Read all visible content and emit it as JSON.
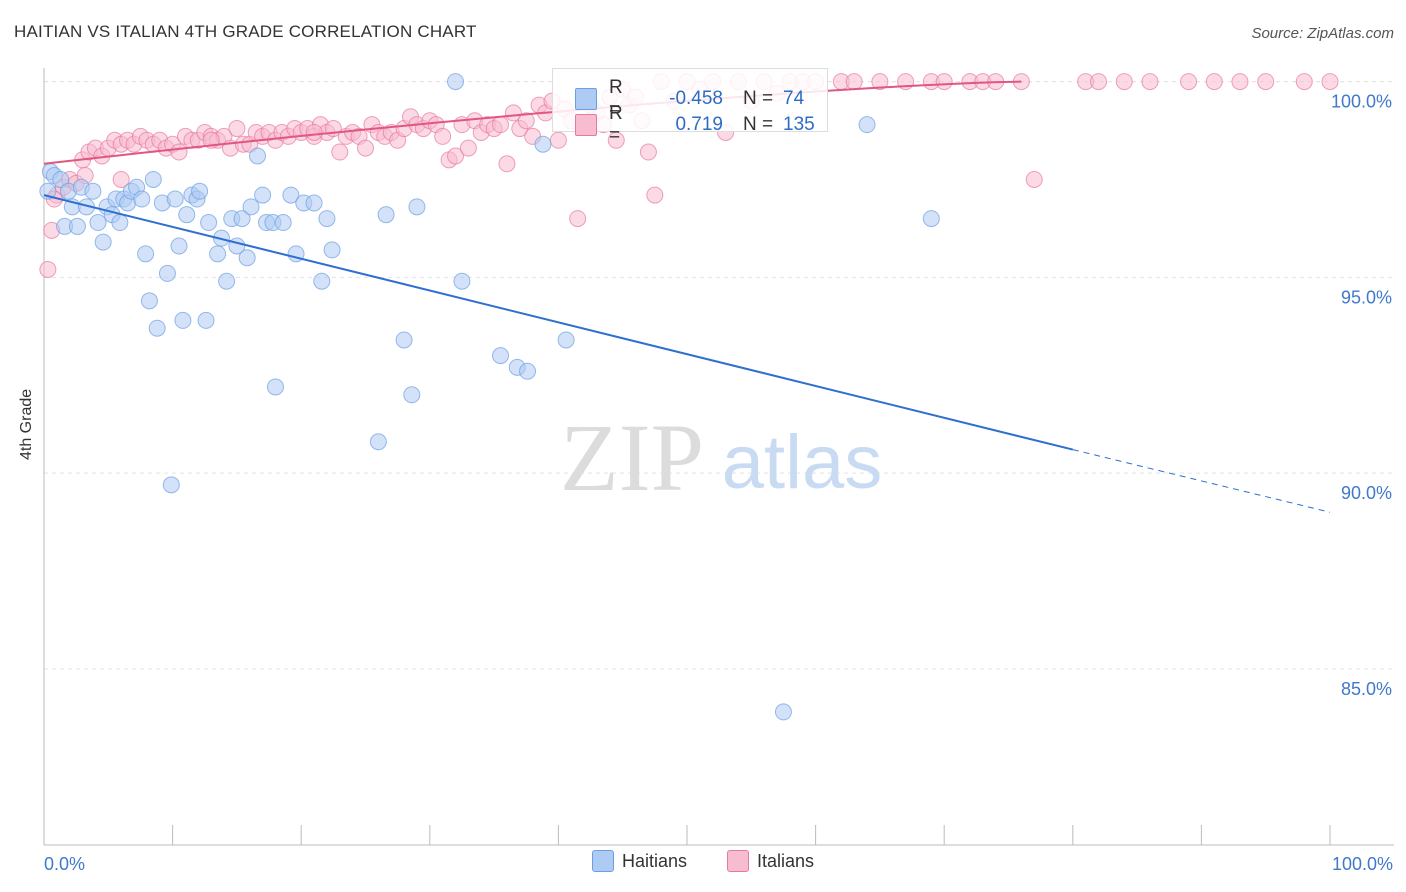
{
  "title": "HAITIAN VS ITALIAN 4TH GRADE CORRELATION CHART",
  "source": "Source: ZipAtlas.com",
  "watermark": {
    "zip": "ZIP",
    "atlas": "atlas"
  },
  "stats": [
    {
      "label": "R =",
      "r": "-0.458",
      "n_label": "N =",
      "n": "74",
      "color": "#a9c8f2"
    },
    {
      "label": "R =",
      "r": "0.719",
      "n_label": "N =",
      "n": "135",
      "color": "#f7b3c9"
    }
  ],
  "chart_data": {
    "type": "scatter",
    "title": "HAITIAN VS ITALIAN 4TH GRADE CORRELATION CHART",
    "xlabel": "",
    "ylabel": "4th Grade",
    "xlim": [
      0,
      100
    ],
    "ylim": [
      80.5,
      100.5
    ],
    "x_tick_labels": [
      "0.0%",
      "100.0%"
    ],
    "y_ticks": [
      85,
      90,
      95,
      100
    ],
    "y_tick_labels": [
      "85.0%",
      "90.0%",
      "95.0%",
      "100.0%"
    ],
    "grid": true,
    "series": [
      {
        "name": "Haitians",
        "color": "#6b9fe3",
        "fill": "#aecbf3",
        "trend": {
          "x0": 0,
          "y0": 97.1,
          "x1": 80,
          "y1": 90.6,
          "dashed_to_x": 100,
          "dashed_to_y": 89.0
        },
        "points": [
          [
            0.5,
            97.7
          ],
          [
            0.8,
            97.6
          ],
          [
            1.3,
            97.5
          ],
          [
            1.6,
            96.3
          ],
          [
            1.9,
            97.2
          ],
          [
            2.2,
            96.8
          ],
          [
            2.6,
            96.3
          ],
          [
            2.9,
            97.3
          ],
          [
            3.3,
            96.8
          ],
          [
            3.8,
            97.2
          ],
          [
            4.2,
            96.4
          ],
          [
            4.6,
            95.9
          ],
          [
            4.9,
            96.8
          ],
          [
            5.3,
            96.6
          ],
          [
            5.6,
            97.0
          ],
          [
            5.9,
            96.4
          ],
          [
            6.2,
            97.0
          ],
          [
            6.5,
            96.9
          ],
          [
            6.8,
            97.2
          ],
          [
            7.2,
            97.3
          ],
          [
            7.6,
            97.0
          ],
          [
            7.9,
            95.6
          ],
          [
            8.2,
            94.4
          ],
          [
            8.5,
            97.5
          ],
          [
            8.8,
            93.7
          ],
          [
            9.2,
            96.9
          ],
          [
            9.6,
            95.1
          ],
          [
            9.9,
            89.7
          ],
          [
            10.2,
            97.0
          ],
          [
            10.5,
            95.8
          ],
          [
            10.8,
            93.9
          ],
          [
            11.1,
            96.6
          ],
          [
            11.5,
            97.1
          ],
          [
            11.9,
            97.0
          ],
          [
            12.1,
            97.2
          ],
          [
            12.6,
            93.9
          ],
          [
            12.8,
            96.4
          ],
          [
            13.5,
            95.6
          ],
          [
            13.8,
            96.0
          ],
          [
            14.2,
            94.9
          ],
          [
            14.6,
            96.5
          ],
          [
            15.0,
            95.8
          ],
          [
            15.4,
            96.5
          ],
          [
            15.8,
            95.5
          ],
          [
            16.1,
            96.8
          ],
          [
            16.6,
            98.1
          ],
          [
            17.0,
            97.1
          ],
          [
            17.3,
            96.4
          ],
          [
            17.8,
            96.4
          ],
          [
            18.0,
            92.2
          ],
          [
            18.6,
            96.4
          ],
          [
            19.2,
            97.1
          ],
          [
            19.6,
            95.6
          ],
          [
            20.2,
            96.9
          ],
          [
            21.0,
            96.9
          ],
          [
            21.6,
            94.9
          ],
          [
            22.0,
            96.5
          ],
          [
            22.4,
            95.7
          ],
          [
            26.0,
            90.8
          ],
          [
            26.6,
            96.6
          ],
          [
            28.0,
            93.4
          ],
          [
            28.6,
            92.0
          ],
          [
            29.0,
            96.8
          ],
          [
            32.0,
            100.0
          ],
          [
            32.5,
            94.9
          ],
          [
            35.5,
            93.0
          ],
          [
            36.8,
            92.7
          ],
          [
            37.6,
            92.6
          ],
          [
            38.8,
            98.4
          ],
          [
            40.6,
            93.4
          ],
          [
            57.5,
            83.9
          ],
          [
            64.0,
            98.9
          ],
          [
            69.0,
            96.5
          ],
          [
            0.3,
            97.2
          ]
        ]
      },
      {
        "name": "Italians",
        "color": "#e8799e",
        "fill": "#f7bcd0",
        "trend": {
          "x0": 0,
          "y0": 97.9,
          "x1": 76,
          "y1": 100.0
        },
        "points": [
          [
            0.3,
            95.2
          ],
          [
            0.6,
            96.2
          ],
          [
            1.0,
            97.1
          ],
          [
            1.5,
            97.3
          ],
          [
            2.0,
            97.5
          ],
          [
            2.5,
            97.4
          ],
          [
            3.0,
            98.0
          ],
          [
            3.5,
            98.2
          ],
          [
            4.0,
            98.3
          ],
          [
            4.5,
            98.1
          ],
          [
            5.0,
            98.3
          ],
          [
            5.5,
            98.5
          ],
          [
            6.0,
            98.4
          ],
          [
            6.5,
            98.5
          ],
          [
            7.0,
            98.4
          ],
          [
            7.5,
            98.6
          ],
          [
            8.0,
            98.5
          ],
          [
            8.5,
            98.4
          ],
          [
            9.0,
            98.5
          ],
          [
            9.5,
            98.3
          ],
          [
            10.0,
            98.4
          ],
          [
            10.5,
            98.2
          ],
          [
            11.0,
            98.6
          ],
          [
            11.5,
            98.5
          ],
          [
            12.0,
            98.5
          ],
          [
            12.5,
            98.7
          ],
          [
            13.0,
            98.6
          ],
          [
            13.5,
            98.5
          ],
          [
            14.0,
            98.6
          ],
          [
            14.5,
            98.3
          ],
          [
            15.0,
            98.8
          ],
          [
            15.5,
            98.4
          ],
          [
            16.0,
            98.4
          ],
          [
            16.5,
            98.7
          ],
          [
            17.0,
            98.6
          ],
          [
            17.5,
            98.7
          ],
          [
            18.0,
            98.5
          ],
          [
            18.5,
            98.7
          ],
          [
            19.0,
            98.6
          ],
          [
            19.5,
            98.8
          ],
          [
            20.0,
            98.7
          ],
          [
            20.5,
            98.8
          ],
          [
            21.0,
            98.6
          ],
          [
            21.5,
            98.9
          ],
          [
            22.0,
            98.7
          ],
          [
            22.5,
            98.8
          ],
          [
            23.0,
            98.2
          ],
          [
            23.5,
            98.6
          ],
          [
            24.0,
            98.7
          ],
          [
            24.5,
            98.6
          ],
          [
            25.0,
            98.3
          ],
          [
            25.5,
            98.9
          ],
          [
            26.0,
            98.7
          ],
          [
            26.5,
            98.6
          ],
          [
            27.0,
            98.7
          ],
          [
            27.5,
            98.5
          ],
          [
            28.0,
            98.8
          ],
          [
            28.5,
            99.1
          ],
          [
            29.0,
            98.9
          ],
          [
            29.5,
            98.8
          ],
          [
            30.0,
            99.0
          ],
          [
            30.5,
            98.9
          ],
          [
            31.0,
            98.6
          ],
          [
            31.5,
            98.0
          ],
          [
            32.0,
            98.1
          ],
          [
            32.5,
            98.9
          ],
          [
            33.0,
            98.3
          ],
          [
            33.5,
            99.0
          ],
          [
            34.0,
            98.7
          ],
          [
            34.5,
            98.9
          ],
          [
            35.0,
            98.8
          ],
          [
            35.5,
            98.9
          ],
          [
            36.0,
            97.9
          ],
          [
            36.5,
            99.2
          ],
          [
            37.0,
            98.8
          ],
          [
            37.5,
            99.0
          ],
          [
            38.0,
            98.6
          ],
          [
            38.5,
            99.4
          ],
          [
            39.0,
            99.2
          ],
          [
            39.5,
            99.5
          ],
          [
            40.0,
            98.5
          ],
          [
            40.5,
            99.3
          ],
          [
            41.0,
            99.0
          ],
          [
            41.5,
            96.5
          ],
          [
            42.0,
            98.9
          ],
          [
            42.5,
            99.4
          ],
          [
            43.0,
            99.2
          ],
          [
            43.5,
            98.9
          ],
          [
            44.0,
            99.6
          ],
          [
            44.5,
            98.5
          ],
          [
            45.0,
            99.8
          ],
          [
            45.5,
            99.4
          ],
          [
            46.0,
            99.6
          ],
          [
            46.5,
            99.0
          ],
          [
            47.0,
            98.2
          ],
          [
            47.5,
            97.1
          ],
          [
            48.0,
            100.0
          ],
          [
            49.0,
            99.5
          ],
          [
            50.0,
            100.0
          ],
          [
            51.0,
            99.8
          ],
          [
            52.0,
            100.0
          ],
          [
            53.0,
            98.7
          ],
          [
            54.0,
            100.0
          ],
          [
            55.0,
            99.5
          ],
          [
            56.0,
            100.0
          ],
          [
            57.0,
            99.7
          ],
          [
            58.0,
            100.0
          ],
          [
            59.0,
            100.0
          ],
          [
            60.0,
            100.0
          ],
          [
            62.0,
            100.0
          ],
          [
            63.0,
            100.0
          ],
          [
            65.0,
            100.0
          ],
          [
            67.0,
            100.0
          ],
          [
            69.0,
            100.0
          ],
          [
            70.0,
            100.0
          ],
          [
            72.0,
            100.0
          ],
          [
            73.0,
            100.0
          ],
          [
            74.0,
            100.0
          ],
          [
            76.0,
            100.0
          ],
          [
            77.0,
            97.5
          ],
          [
            81.0,
            100.0
          ],
          [
            82.0,
            100.0
          ],
          [
            84.0,
            100.0
          ],
          [
            86.0,
            100.0
          ],
          [
            89.0,
            100.0
          ],
          [
            91.0,
            100.0
          ],
          [
            93.0,
            100.0
          ],
          [
            95.0,
            100.0
          ],
          [
            98.0,
            100.0
          ],
          [
            100.0,
            100.0
          ],
          [
            0.8,
            97.0
          ],
          [
            3.2,
            97.6
          ],
          [
            6.0,
            97.5
          ],
          [
            13.0,
            98.5
          ],
          [
            21.0,
            98.7
          ]
        ]
      }
    ],
    "legend": [
      "Haitians",
      "Italians"
    ]
  }
}
